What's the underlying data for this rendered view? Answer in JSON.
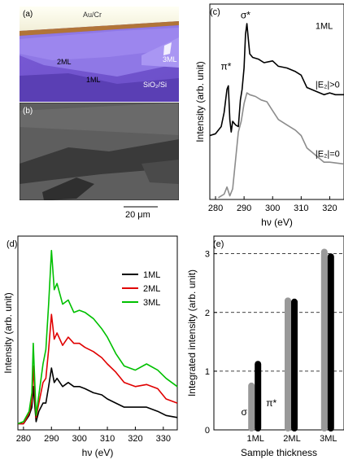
{
  "panel_a": {
    "label": "(a)",
    "text_aucr": "Au/Cr",
    "text_2ml": "2ML",
    "text_1ml": "1ML",
    "text_3ml": "3ML",
    "text_substrate": "SiO₂/Si"
  },
  "panel_b": {
    "label": "(b)",
    "scalebar": "20 μm"
  },
  "chart_data": [
    {
      "panel": "(c)",
      "type": "line",
      "xlabel": "hν (eV)",
      "ylabel": "Intensity (arb. unit)",
      "xlim": [
        278,
        325
      ],
      "xticks": [
        280,
        290,
        300,
        310,
        320
      ],
      "grid": false,
      "annotations": [
        "σ*",
        "π*",
        "1ML",
        "|E₂|>0",
        "|E₂|=0"
      ],
      "series": [
        {
          "name": "|E₂|>0",
          "color": "#000000",
          "x": [
            278,
            280,
            282,
            283,
            284,
            284.5,
            285,
            285.5,
            286,
            287,
            288,
            288.7,
            289.3,
            290,
            290.5,
            291,
            291.5,
            292,
            293,
            295,
            297,
            300,
            302,
            305,
            308,
            310,
            312,
            315,
            318,
            320,
            322,
            325
          ],
          "y": [
            0.36,
            0.37,
            0.41,
            0.49,
            0.62,
            0.64,
            0.45,
            0.38,
            0.44,
            0.42,
            0.41,
            0.56,
            0.62,
            0.74,
            0.93,
            0.99,
            0.9,
            0.82,
            0.8,
            0.79,
            0.77,
            0.78,
            0.75,
            0.74,
            0.72,
            0.7,
            0.63,
            0.61,
            0.59,
            0.6,
            0.59,
            0.59
          ]
        },
        {
          "name": "|E₂|=0",
          "color": "#8c8c8c",
          "x": [
            281,
            283,
            284,
            285,
            286,
            287,
            288,
            289,
            290,
            291,
            292,
            294,
            296,
            298,
            300,
            302,
            305,
            308,
            310,
            312,
            315,
            318,
            320,
            325
          ],
          "y": [
            0.01,
            0.03,
            0.07,
            0.02,
            0.06,
            0.22,
            0.38,
            0.44,
            0.54,
            0.6,
            0.59,
            0.58,
            0.56,
            0.55,
            0.5,
            0.45,
            0.42,
            0.39,
            0.36,
            0.29,
            0.25,
            0.21,
            0.21,
            0.2
          ]
        }
      ]
    },
    {
      "panel": "(d)",
      "type": "line",
      "xlabel": "hν (eV)",
      "ylabel": "Intensity (arb. unit)",
      "xlim": [
        278,
        335
      ],
      "xticks": [
        280,
        290,
        300,
        310,
        320,
        330
      ],
      "grid": false,
      "legend_position": "top-right",
      "series": [
        {
          "name": "1ML",
          "color": "#000000",
          "x": [
            278,
            280,
            282,
            283,
            283.5,
            284.5,
            285.5,
            287,
            288,
            289,
            290,
            291,
            292,
            294,
            296,
            298,
            300,
            302,
            305,
            308,
            310,
            313,
            316,
            320,
            324,
            328,
            331,
            335
          ],
          "y": [
            0.02,
            0.02,
            0.06,
            0.1,
            0.2,
            0.03,
            0.08,
            0.12,
            0.12,
            0.2,
            0.29,
            0.22,
            0.24,
            0.2,
            0.22,
            0.2,
            0.2,
            0.19,
            0.17,
            0.16,
            0.14,
            0.12,
            0.1,
            0.1,
            0.1,
            0.08,
            0.06,
            0.05
          ]
        },
        {
          "name": "2ML",
          "color": "#e00000",
          "x": [
            278,
            280,
            282,
            283,
            283.5,
            284.5,
            285.5,
            287,
            288,
            289,
            290,
            291,
            292,
            294,
            296,
            298,
            300,
            302,
            305,
            308,
            310,
            313,
            316,
            320,
            324,
            328,
            331,
            335
          ],
          "y": [
            0.02,
            0.02,
            0.07,
            0.13,
            0.3,
            0.05,
            0.12,
            0.22,
            0.24,
            0.38,
            0.55,
            0.43,
            0.46,
            0.4,
            0.44,
            0.41,
            0.41,
            0.39,
            0.37,
            0.34,
            0.31,
            0.27,
            0.22,
            0.2,
            0.21,
            0.19,
            0.14,
            0.12
          ]
        },
        {
          "name": "3ML",
          "color": "#00c000",
          "x": [
            278,
            280,
            282,
            283,
            283.5,
            284.5,
            285.5,
            287,
            288,
            289,
            290,
            291,
            292,
            294,
            296,
            298,
            300,
            302,
            305,
            308,
            310,
            313,
            316,
            320,
            324,
            328,
            331,
            335
          ],
          "y": [
            0.02,
            0.03,
            0.08,
            0.17,
            0.41,
            0.06,
            0.16,
            0.31,
            0.38,
            0.6,
            0.86,
            0.67,
            0.7,
            0.6,
            0.62,
            0.56,
            0.57,
            0.56,
            0.53,
            0.48,
            0.44,
            0.36,
            0.3,
            0.28,
            0.31,
            0.28,
            0.24,
            0.2
          ]
        }
      ]
    },
    {
      "panel": "(e)",
      "type": "bar",
      "xlabel": "Sample thickness",
      "ylabel": "Integrated intensity (arb. unit)",
      "ylim": [
        0,
        3.3
      ],
      "yticks": [
        0,
        1,
        2,
        3
      ],
      "categories": [
        "1ML",
        "2ML",
        "3ML"
      ],
      "annotations": [
        "σ",
        "π*"
      ],
      "grid": "dashed at 1, 2, 3",
      "series": [
        {
          "name": "σ",
          "color": "#999999",
          "values": [
            0.75,
            2.2,
            3.03
          ]
        },
        {
          "name": "π*",
          "color": "#000000",
          "values": [
            1.12,
            2.18,
            2.95
          ]
        }
      ]
    }
  ]
}
